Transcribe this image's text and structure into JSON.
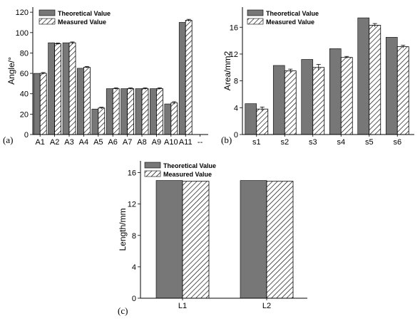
{
  "colors": {
    "theoretical_fill": "#777777",
    "measured_hatch": "#000000",
    "axis": "#000000",
    "background": "#ffffff"
  },
  "legend": {
    "theoretical": "Theoretical Value",
    "measured": "Measured Value"
  },
  "chart_data": [
    {
      "type": "bar",
      "panel_label": "(a)",
      "ylabel": "Angle/°",
      "xlabel": "",
      "categories": [
        "A1",
        "A2",
        "A3",
        "A4",
        "A5",
        "A6",
        "A7",
        "A8",
        "A9",
        "A10",
        "A11",
        "--"
      ],
      "series": [
        {
          "name": "Theoretical Value",
          "values": [
            60,
            90,
            90,
            65,
            25,
            45,
            45,
            45,
            45,
            30,
            110,
            null
          ]
        },
        {
          "name": "Measured Value",
          "values": [
            60,
            89,
            90,
            66,
            26,
            45,
            45,
            45,
            45,
            31,
            112,
            null
          ],
          "errors": [
            0.8,
            0.8,
            0.8,
            0.8,
            0.8,
            0.8,
            0.8,
            0.8,
            0.8,
            1.2,
            1.0,
            null
          ]
        }
      ],
      "ylim": [
        0,
        125
      ],
      "yticks": [
        "0",
        "20",
        "40",
        "60",
        "80",
        "100",
        "120"
      ],
      "legend_position": "top-left",
      "grid": false
    },
    {
      "type": "bar",
      "panel_label": "(b)",
      "ylabel": "Area/mm2",
      "xlabel": "",
      "categories": [
        "s1",
        "s2",
        "s3",
        "s4",
        "s5",
        "s6"
      ],
      "series": [
        {
          "name": "Theoretical Value",
          "values": [
            4.6,
            10.3,
            11.2,
            12.8,
            17.4,
            14.5
          ]
        },
        {
          "name": "Measured Value",
          "values": [
            3.8,
            9.5,
            10.0,
            11.5,
            16.3,
            13.1
          ],
          "errors": [
            0.3,
            0.25,
            0.45,
            0.15,
            0.25,
            0.2
          ]
        }
      ],
      "ylim": [
        0,
        19
      ],
      "yticks": [
        "0",
        "4",
        "8",
        "12",
        "16"
      ],
      "legend_position": "top-left",
      "grid": false
    },
    {
      "type": "bar",
      "panel_label": "(c)",
      "ylabel": "Length/mm",
      "xlabel": "",
      "categories": [
        "L1",
        "L2"
      ],
      "series": [
        {
          "name": "Theoretical Value",
          "values": [
            15.0,
            15.0
          ]
        },
        {
          "name": "Measured Value",
          "values": [
            14.9,
            14.9
          ]
        }
      ],
      "ylim": [
        0,
        17.5
      ],
      "yticks": [
        "0",
        "4",
        "8",
        "12",
        "16"
      ],
      "legend_position": "top-left",
      "grid": false
    }
  ]
}
